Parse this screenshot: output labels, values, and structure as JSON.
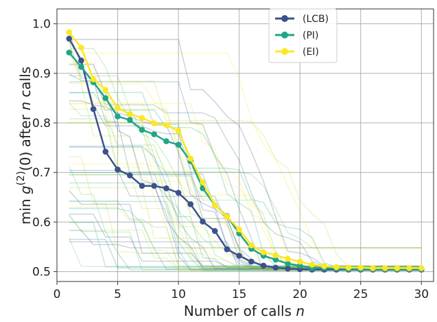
{
  "chart_data": {
    "type": "line",
    "xlabel_prefix": "Number of calls ",
    "xlabel_var": "n",
    "ylabel_parts": [
      "min ",
      "g",
      "(2)",
      "(0) after ",
      "n",
      " calls"
    ],
    "xlim": [
      0,
      31
    ],
    "ylim": [
      0.48,
      1.03
    ],
    "xticks": [
      0,
      5,
      10,
      15,
      20,
      25,
      30
    ],
    "xtick_labels": [
      "0",
      "5",
      "10",
      "15",
      "20",
      "25",
      "30"
    ],
    "yticks": [
      0.5,
      0.6,
      0.7,
      0.8,
      0.9,
      1.0
    ],
    "ytick_labels": [
      "0.5",
      "0.6",
      "0.7",
      "0.8",
      "0.9",
      "1.0"
    ],
    "grid": true,
    "legend_position": "top-right",
    "x": [
      1,
      2,
      3,
      4,
      5,
      6,
      7,
      8,
      9,
      10,
      11,
      12,
      13,
      14,
      15,
      16,
      17,
      18,
      19,
      20,
      21,
      22,
      23,
      24,
      25,
      26,
      27,
      28,
      29,
      30
    ],
    "series": [
      {
        "name": "(LCB)",
        "color": "#3b528b",
        "values": [
          0.97,
          0.926,
          0.828,
          0.742,
          0.706,
          0.694,
          0.673,
          0.673,
          0.668,
          0.659,
          0.636,
          0.601,
          0.582,
          0.545,
          0.532,
          0.52,
          0.512,
          0.508,
          0.506,
          0.505,
          0.504,
          0.504,
          0.504,
          0.504,
          0.504,
          0.504,
          0.504,
          0.504,
          0.504,
          0.504
        ]
      },
      {
        "name": "(PI)",
        "color": "#21a585",
        "values": [
          0.942,
          0.913,
          0.882,
          0.85,
          0.813,
          0.806,
          0.786,
          0.777,
          0.763,
          0.756,
          0.723,
          0.668,
          0.634,
          0.612,
          0.577,
          0.546,
          0.532,
          0.524,
          0.516,
          0.512,
          0.507,
          0.507,
          0.506,
          0.505,
          0.505,
          0.505,
          0.505,
          0.505,
          0.505,
          0.505
        ]
      },
      {
        "name": "(EI)",
        "color": "#fde725",
        "values": [
          0.983,
          0.952,
          0.888,
          0.867,
          0.83,
          0.818,
          0.81,
          0.799,
          0.796,
          0.784,
          0.728,
          0.68,
          0.634,
          0.611,
          0.585,
          0.553,
          0.539,
          0.533,
          0.526,
          0.52,
          0.514,
          0.511,
          0.509,
          0.508,
          0.508,
          0.507,
          0.507,
          0.507,
          0.507,
          0.507
        ]
      }
    ]
  }
}
